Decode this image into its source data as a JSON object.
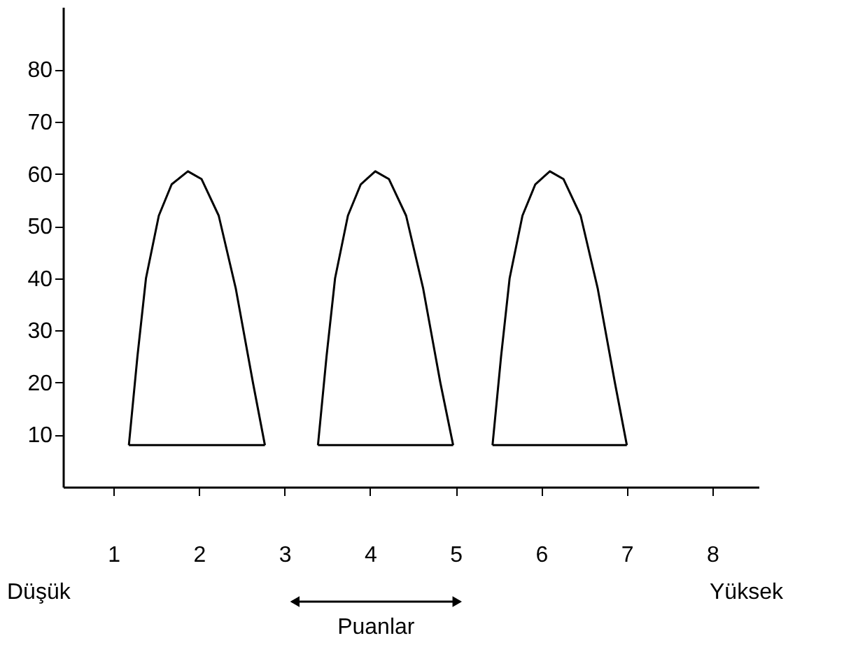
{
  "chart_data": {
    "type": "line",
    "series": [
      {
        "color": "#000000",
        "x": [
          1.18,
          1.28,
          1.38,
          1.53,
          1.68,
          1.87,
          2.03,
          2.23,
          2.43,
          2.63,
          2.77
        ],
        "values": [
          8,
          25,
          40,
          52,
          58,
          60.5,
          59,
          52,
          38,
          20,
          8
        ]
      },
      {
        "color": "#000000",
        "x": [
          1.18,
          2.77
        ],
        "values": [
          8,
          8
        ]
      },
      {
        "color": "#000000",
        "x": [
          3.39,
          3.49,
          3.59,
          3.74,
          3.89,
          4.06,
          4.22,
          4.42,
          4.62,
          4.82,
          4.97
        ],
        "values": [
          8,
          25,
          40,
          52,
          58,
          60.5,
          59,
          52,
          38,
          20,
          8
        ]
      },
      {
        "color": "#000000",
        "x": [
          3.39,
          4.97
        ],
        "values": [
          8,
          8
        ]
      },
      {
        "color": "#000000",
        "x": [
          5.43,
          5.53,
          5.63,
          5.78,
          5.93,
          6.1,
          6.26,
          6.46,
          6.66,
          6.86,
          7.0
        ],
        "values": [
          8,
          25,
          40,
          52,
          58,
          60.5,
          59,
          52,
          38,
          20,
          8
        ]
      },
      {
        "color": "#000000",
        "x": [
          5.43,
          7.0
        ],
        "values": [
          8,
          8
        ]
      }
    ],
    "xlim": [
      0.41,
      8.54
    ],
    "ylim": [
      0,
      92
    ],
    "xticks": [
      1,
      2,
      3,
      4,
      5,
      6,
      7,
      8
    ],
    "yticks": [
      10,
      20,
      30,
      40,
      50,
      60,
      70,
      80
    ],
    "grid": false,
    "line_style": "solid",
    "annotations": [
      "Düşük",
      "Yüksek",
      "Puanlar"
    ]
  }
}
